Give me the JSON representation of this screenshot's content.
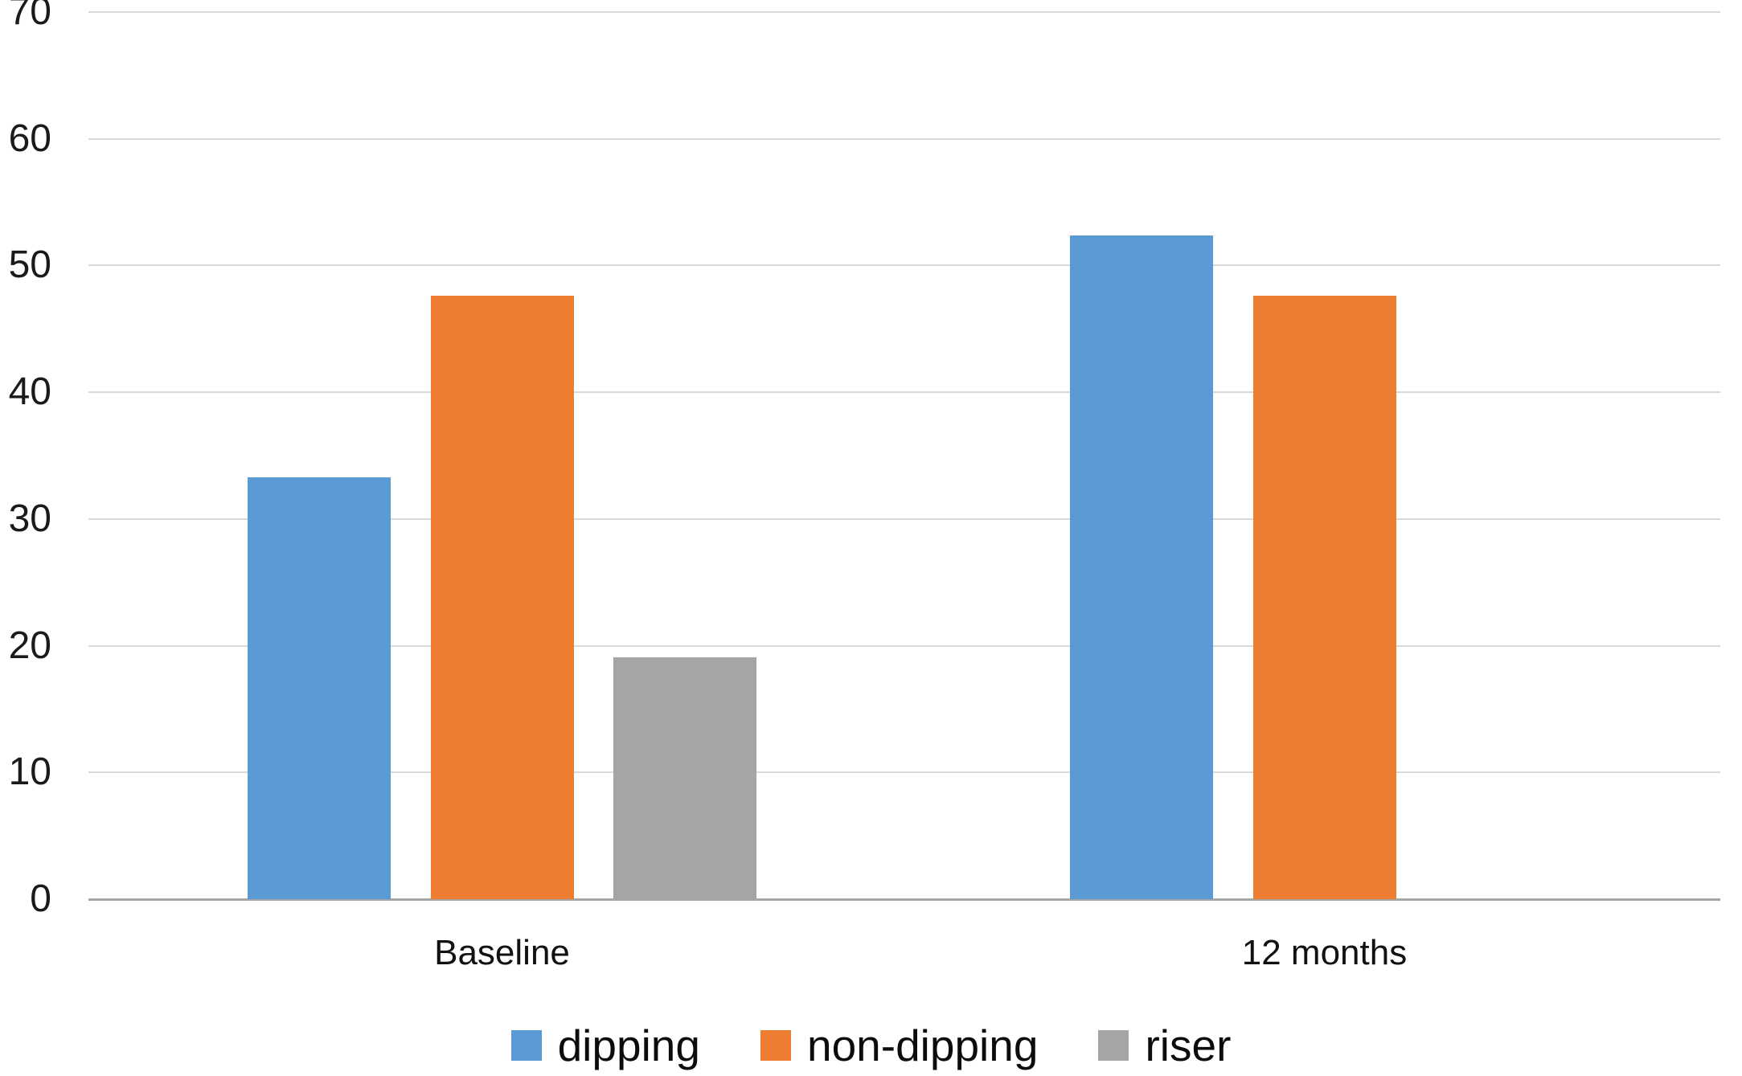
{
  "chart_data": {
    "type": "bar",
    "title": "",
    "xlabel": "",
    "ylabel": "",
    "categories": [
      "Baseline",
      "12 months"
    ],
    "series": [
      {
        "name": "dipping",
        "color": "#5B9BD5",
        "values": [
          33.3,
          52.4
        ]
      },
      {
        "name": "non-dipping",
        "color": "#ED7D31",
        "values": [
          47.6,
          47.6
        ]
      },
      {
        "name": "riser",
        "color": "#A5A5A5",
        "values": [
          19.1,
          0
        ]
      }
    ],
    "ylim": [
      0,
      70
    ],
    "yticks": [
      0,
      10,
      20,
      30,
      40,
      50,
      60,
      70
    ],
    "grid": true,
    "legend_position": "bottom",
    "legend": [
      "dipping",
      "non-dipping",
      "riser"
    ]
  },
  "colors": {
    "gridline": "#D9D9D9",
    "axis_line": "#A6A6A6",
    "tick_text": "#1A1A1A",
    "background": "#FFFFFF"
  }
}
